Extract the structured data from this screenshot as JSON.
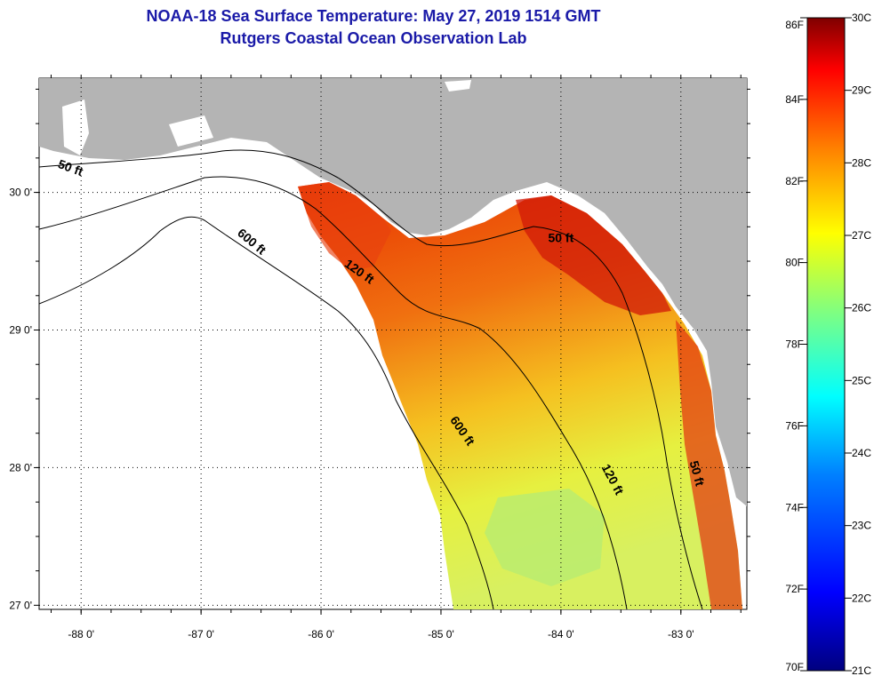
{
  "header": {
    "title": "NOAA-18 Sea Surface Temperature:  May 27, 2019 1514 GMT",
    "subtitle": "Rutgers Coastal Ocean Observation Lab"
  },
  "map": {
    "lon_range": [
      -88.35,
      -82.45
    ],
    "lat_range": [
      26.97,
      30.83
    ],
    "lon_ticks": [
      {
        "value": -88,
        "label": "-88 0'"
      },
      {
        "value": -87,
        "label": "-87 0'"
      },
      {
        "value": -86,
        "label": "-86 0'"
      },
      {
        "value": -85,
        "label": "-85 0'"
      },
      {
        "value": -84,
        "label": "-84 0'"
      },
      {
        "value": -83,
        "label": "-83 0'"
      }
    ],
    "lat_ticks": [
      {
        "value": 30,
        "label": "30 0'"
      },
      {
        "value": 29,
        "label": "29 0'"
      },
      {
        "value": 28,
        "label": "28 0'"
      },
      {
        "value": 27,
        "label": "27 0'"
      }
    ],
    "grid": "dotted",
    "colors": {
      "land": "#b4b4b4",
      "ocean_nodata": "#ffffff",
      "contour": "#000000"
    },
    "contour_labels": [
      {
        "text": "50 ft",
        "lon": -88.1,
        "lat": 30.15,
        "rotate": 20
      },
      {
        "text": "600 ft",
        "lon": -86.6,
        "lat": 29.62,
        "rotate": 40
      },
      {
        "text": "120 ft",
        "lon": -85.7,
        "lat": 29.4,
        "rotate": 35
      },
      {
        "text": "50 ft",
        "lon": -84.0,
        "lat": 29.64,
        "rotate": 0
      },
      {
        "text": "600 ft",
        "lon": -84.85,
        "lat": 28.25,
        "rotate": 55
      },
      {
        "text": "120 ft",
        "lon": -83.6,
        "lat": 27.9,
        "rotate": 62
      },
      {
        "text": "50 ft",
        "lon": -82.9,
        "lat": 27.95,
        "rotate": 75
      }
    ]
  },
  "colorbar": {
    "fahrenheit": [
      "86F",
      "84F",
      "82F",
      "80F",
      "78F",
      "76F",
      "74F",
      "72F",
      "70F"
    ],
    "celsius": [
      "30C",
      "29C",
      "28C",
      "27C",
      "26C",
      "25C",
      "24C",
      "23C",
      "22C",
      "21C"
    ],
    "range_c": [
      21,
      30
    ],
    "colors": [
      "#00007f",
      "#0000ff",
      "#0080ff",
      "#00ffff",
      "#80ff80",
      "#ffff00",
      "#ff8000",
      "#ff0000",
      "#7f0000"
    ]
  }
}
